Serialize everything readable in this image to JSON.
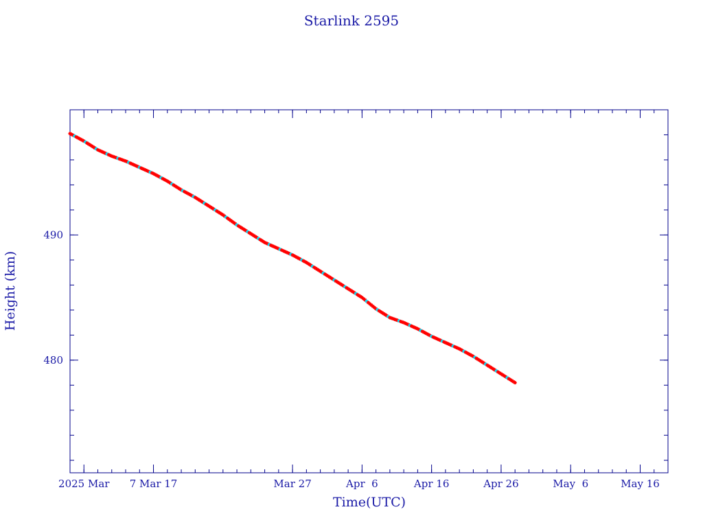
{
  "chart_data": {
    "type": "scatter",
    "title": "Starlink 2595",
    "xlabel": "Time(UTC)",
    "ylabel": "Height (km)",
    "x_type": "date",
    "xlim": [
      "2025-02-23",
      "2025-05-20"
    ],
    "ylim": [
      471,
      500
    ],
    "x_ticks": [
      {
        "date": "2025-02-25",
        "label": "2025 Mar"
      },
      {
        "date": "2025-03-07",
        "label": "7 Mar 17"
      },
      {
        "date": "2025-03-27",
        "label": "Mar 27"
      },
      {
        "date": "2025-04-06",
        "label": "Apr  6"
      },
      {
        "date": "2025-04-16",
        "label": "Apr 16"
      },
      {
        "date": "2025-04-26",
        "label": "Apr 26"
      },
      {
        "date": "2025-05-06",
        "label": "May  6"
      },
      {
        "date": "2025-05-16",
        "label": "May 16"
      }
    ],
    "y_ticks": [
      {
        "value": 490,
        "label": "490"
      },
      {
        "value": 480,
        "label": "480"
      }
    ],
    "grid": false,
    "colors": {
      "axis": "#00008b",
      "text": "#1a1aa6",
      "line": "#000000",
      "marker_red": "#ff0000",
      "marker_cyan": "#00e5ff"
    },
    "series": [
      {
        "line": true,
        "markers": [
          "red",
          "cyan"
        ],
        "points": [
          [
            "2025-02-23",
            498.1
          ],
          [
            "2025-02-25",
            497.5
          ],
          [
            "2025-02-27",
            496.8
          ],
          [
            "2025-03-01",
            496.3
          ],
          [
            "2025-03-03",
            495.9
          ],
          [
            "2025-03-05",
            495.4
          ],
          [
            "2025-03-07",
            494.9
          ],
          [
            "2025-03-09",
            494.3
          ],
          [
            "2025-03-11",
            493.6
          ],
          [
            "2025-03-13",
            493.0
          ],
          [
            "2025-03-15",
            492.3
          ],
          [
            "2025-03-17",
            491.6
          ],
          [
            "2025-03-19",
            490.8
          ],
          [
            "2025-03-21",
            490.1
          ],
          [
            "2025-03-23",
            489.4
          ],
          [
            "2025-03-25",
            488.9
          ],
          [
            "2025-03-27",
            488.4
          ],
          [
            "2025-03-29",
            487.8
          ],
          [
            "2025-03-31",
            487.1
          ],
          [
            "2025-04-02",
            486.4
          ],
          [
            "2025-04-04",
            485.7
          ],
          [
            "2025-04-06",
            485.0
          ],
          [
            "2025-04-08",
            484.1
          ],
          [
            "2025-04-10",
            483.4
          ],
          [
            "2025-04-12",
            483.0
          ],
          [
            "2025-04-14",
            482.5
          ],
          [
            "2025-04-16",
            481.9
          ],
          [
            "2025-04-18",
            481.4
          ],
          [
            "2025-04-20",
            480.9
          ],
          [
            "2025-04-22",
            480.3
          ],
          [
            "2025-04-24",
            479.6
          ],
          [
            "2025-04-26",
            478.9
          ],
          [
            "2025-04-28",
            478.2
          ]
        ]
      }
    ]
  }
}
